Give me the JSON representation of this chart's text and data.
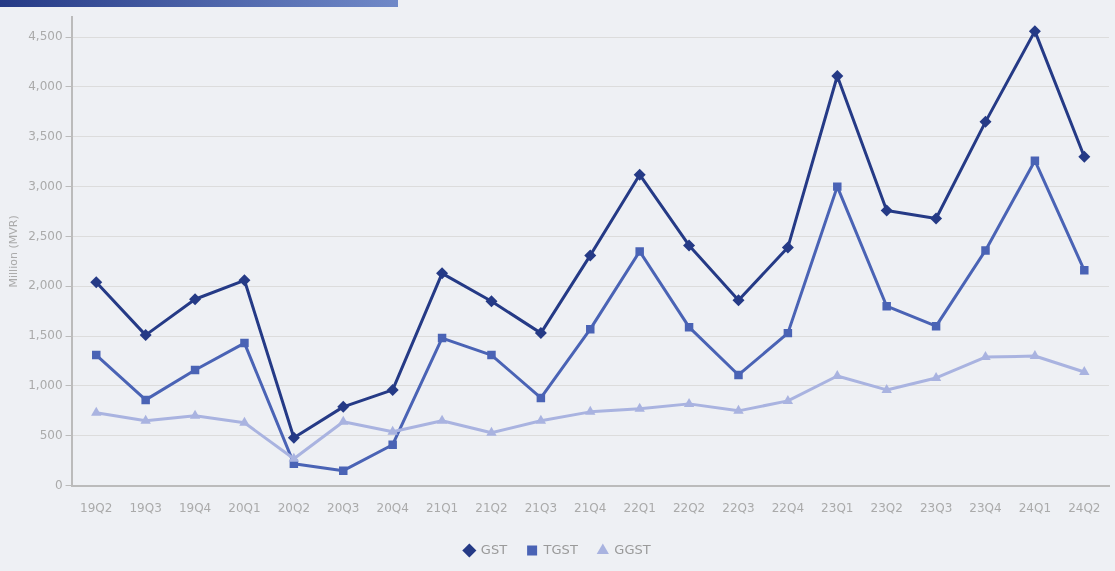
{
  "chart_data": {
    "type": "line",
    "ylabel": "Million (MVR)",
    "categories": [
      "19Q2",
      "19Q3",
      "19Q4",
      "20Q1",
      "20Q2",
      "20Q3",
      "20Q4",
      "21Q1",
      "21Q2",
      "21Q3",
      "21Q4",
      "22Q1",
      "22Q2",
      "22Q3",
      "22Q4",
      "23Q1",
      "23Q2",
      "23Q3",
      "23Q4",
      "24Q1",
      "24Q2"
    ],
    "series": [
      {
        "name": "GST",
        "color": "#253a86",
        "marker": "diamond",
        "values": [
          2040,
          1510,
          1870,
          2060,
          480,
          790,
          960,
          2130,
          1850,
          1530,
          2310,
          3120,
          2410,
          1860,
          2390,
          4110,
          2760,
          2680,
          3650,
          4560,
          3300
        ]
      },
      {
        "name": "TGST",
        "color": "#4a63b5",
        "marker": "square",
        "values": [
          1310,
          860,
          1160,
          1430,
          220,
          150,
          410,
          1480,
          1310,
          880,
          1570,
          2350,
          1590,
          1110,
          1530,
          3000,
          1800,
          1600,
          2360,
          3260,
          2160
        ]
      },
      {
        "name": "GGST",
        "color": "#a9b3e0",
        "marker": "triangle",
        "values": [
          730,
          650,
          700,
          630,
          270,
          640,
          540,
          650,
          530,
          650,
          740,
          770,
          820,
          750,
          850,
          1100,
          960,
          1080,
          1290,
          1300,
          1140
        ]
      }
    ],
    "ylim": [
      0,
      4700
    ],
    "yticks": [
      0,
      500,
      {
        "value": 1000,
        "label": "1,000"
      },
      {
        "value": 1500,
        "label": "1,500"
      },
      {
        "value": 2000,
        "label": "2,000"
      },
      {
        "value": 2500,
        "label": "2,500"
      },
      {
        "value": 3000,
        "label": "3,000"
      },
      {
        "value": 3500,
        "label": "3,500"
      },
      {
        "value": 4000,
        "label": "4,000"
      },
      {
        "value": 4500,
        "label": "4,500"
      }
    ],
    "grid": "y",
    "legend": "bottom",
    "line_style": "solid"
  }
}
